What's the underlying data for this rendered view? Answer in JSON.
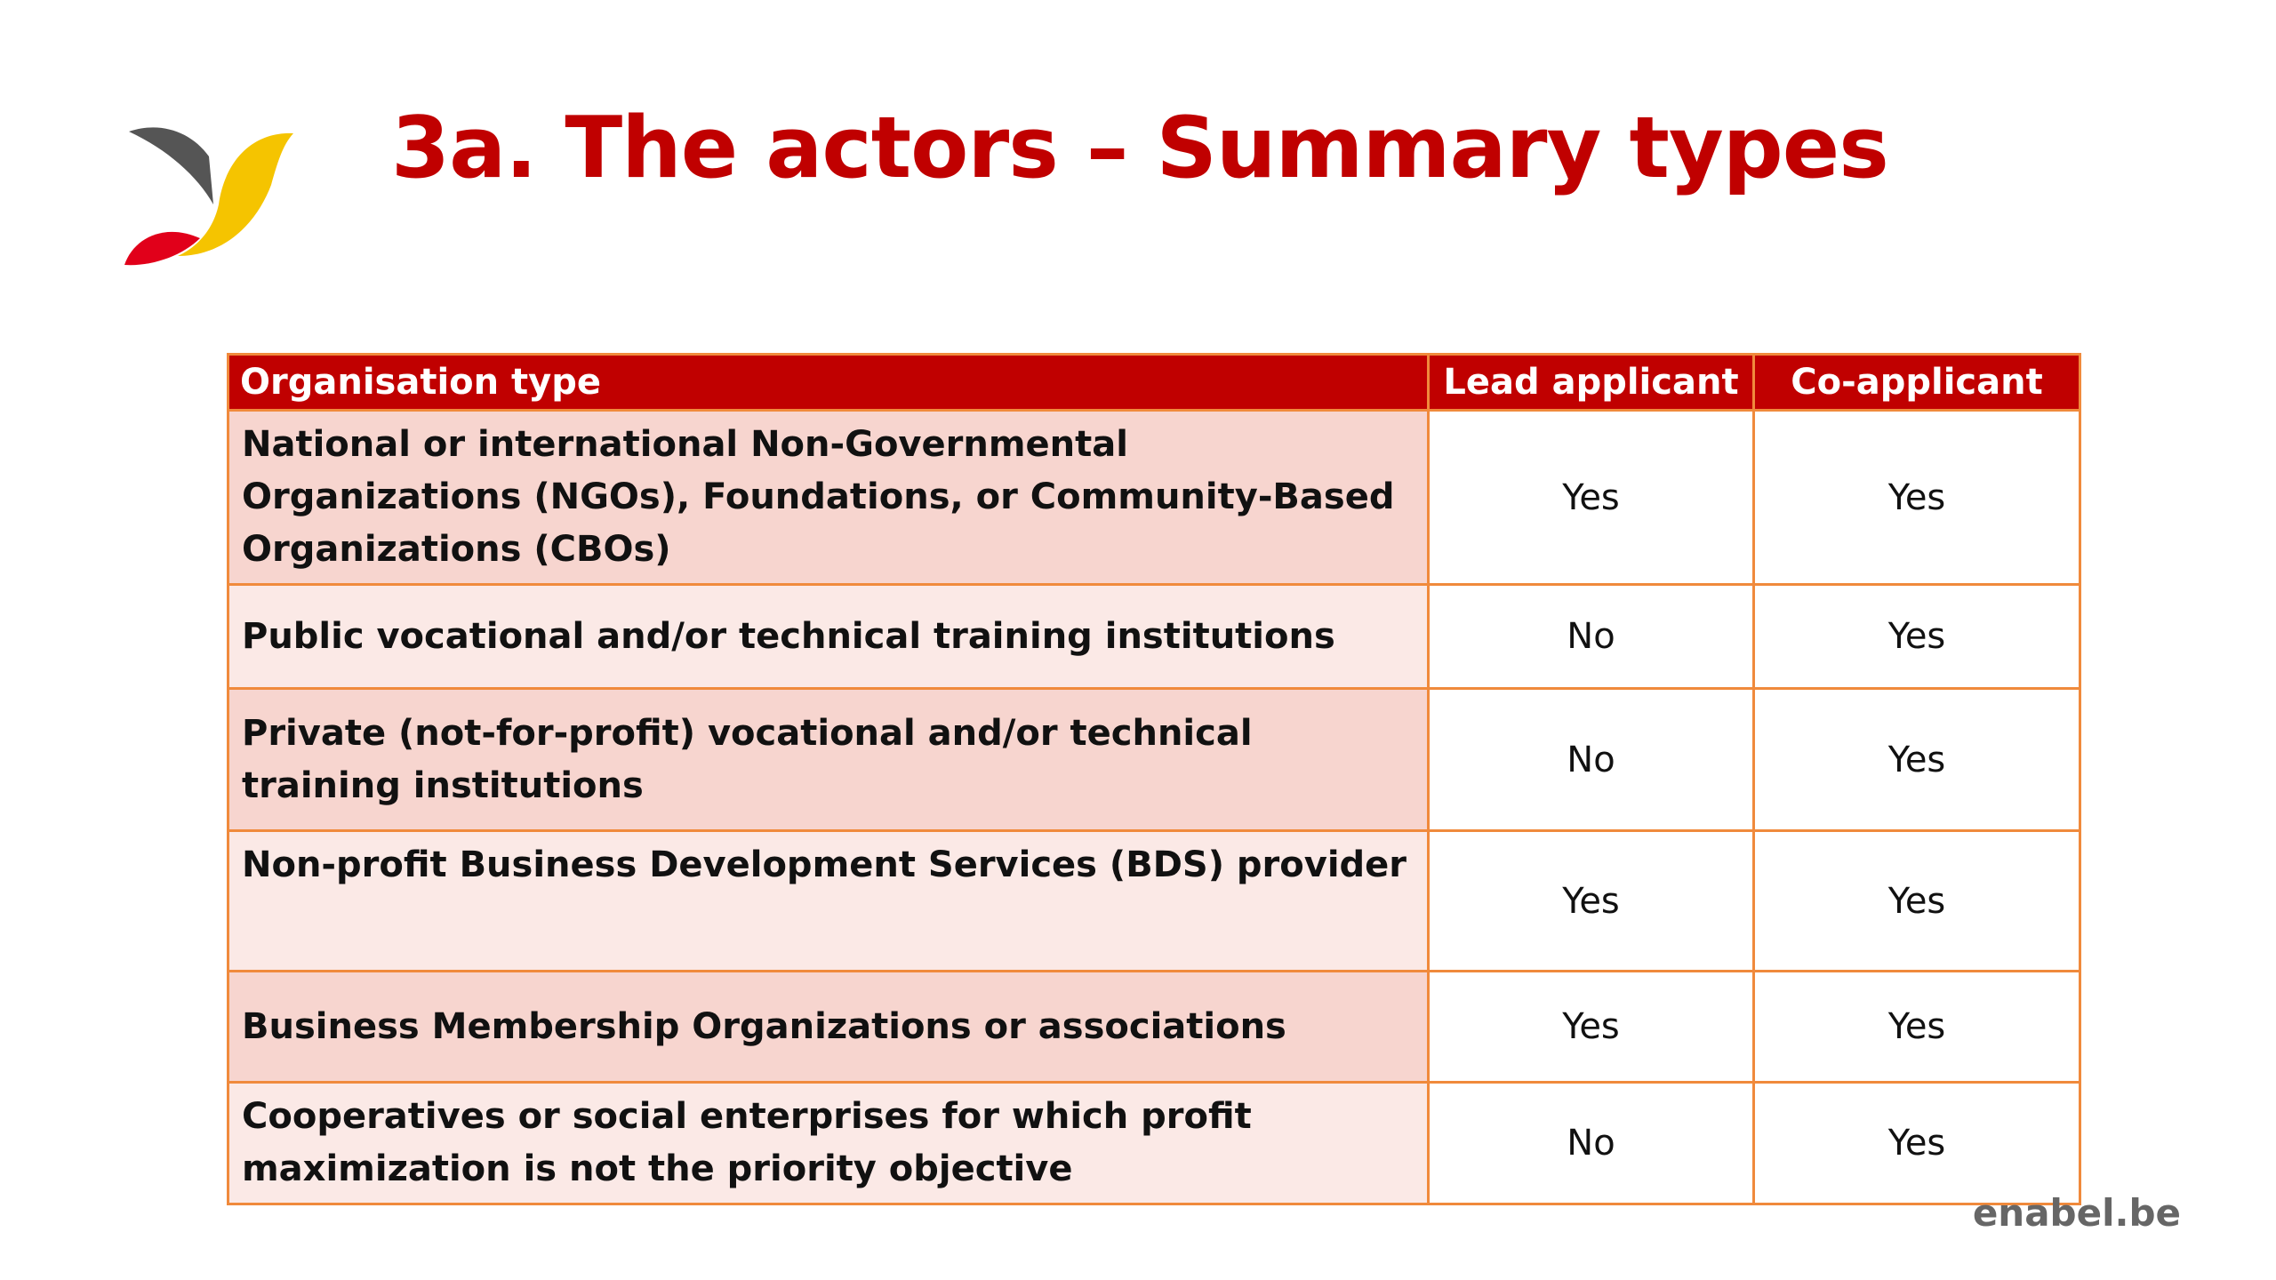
{
  "title": "3a. The actors – Summary types",
  "colors": {
    "title": "#c00000",
    "header_bg": "#c00000",
    "border": "#f08a3c",
    "row_odd": "#f7d5cf",
    "row_even": "#fbe9e6",
    "logo_dark": "#555555",
    "logo_yellow": "#f5c400",
    "logo_red": "#e1001a"
  },
  "logo": {
    "icon": "enabel-logo-icon"
  },
  "table": {
    "headers": [
      "Organisation type",
      "Lead applicant",
      "Co-applicant"
    ],
    "rows": [
      {
        "type": "National or international Non-Governmental Organizations (NGOs), Foundations, or Community-Based Organizations (CBOs)",
        "lead": "Yes",
        "co": "Yes"
      },
      {
        "type": "Public vocational and/or technical training institutions",
        "lead": "No",
        "co": "Yes"
      },
      {
        "type": "Private (not-for-profit) vocational and/or technical training institutions",
        "lead": "No",
        "co": "Yes"
      },
      {
        "type": "Non-profit Business Development Services (BDS) provider",
        "lead": "Yes",
        "co": "Yes"
      },
      {
        "type": "Business Membership Organizations or associations",
        "lead": "Yes",
        "co": "Yes"
      },
      {
        "type": "Cooperatives or social enterprises for which profit maximization is not the priority objective",
        "lead": "No",
        "co": "Yes"
      }
    ]
  },
  "footer": "enabel.be"
}
